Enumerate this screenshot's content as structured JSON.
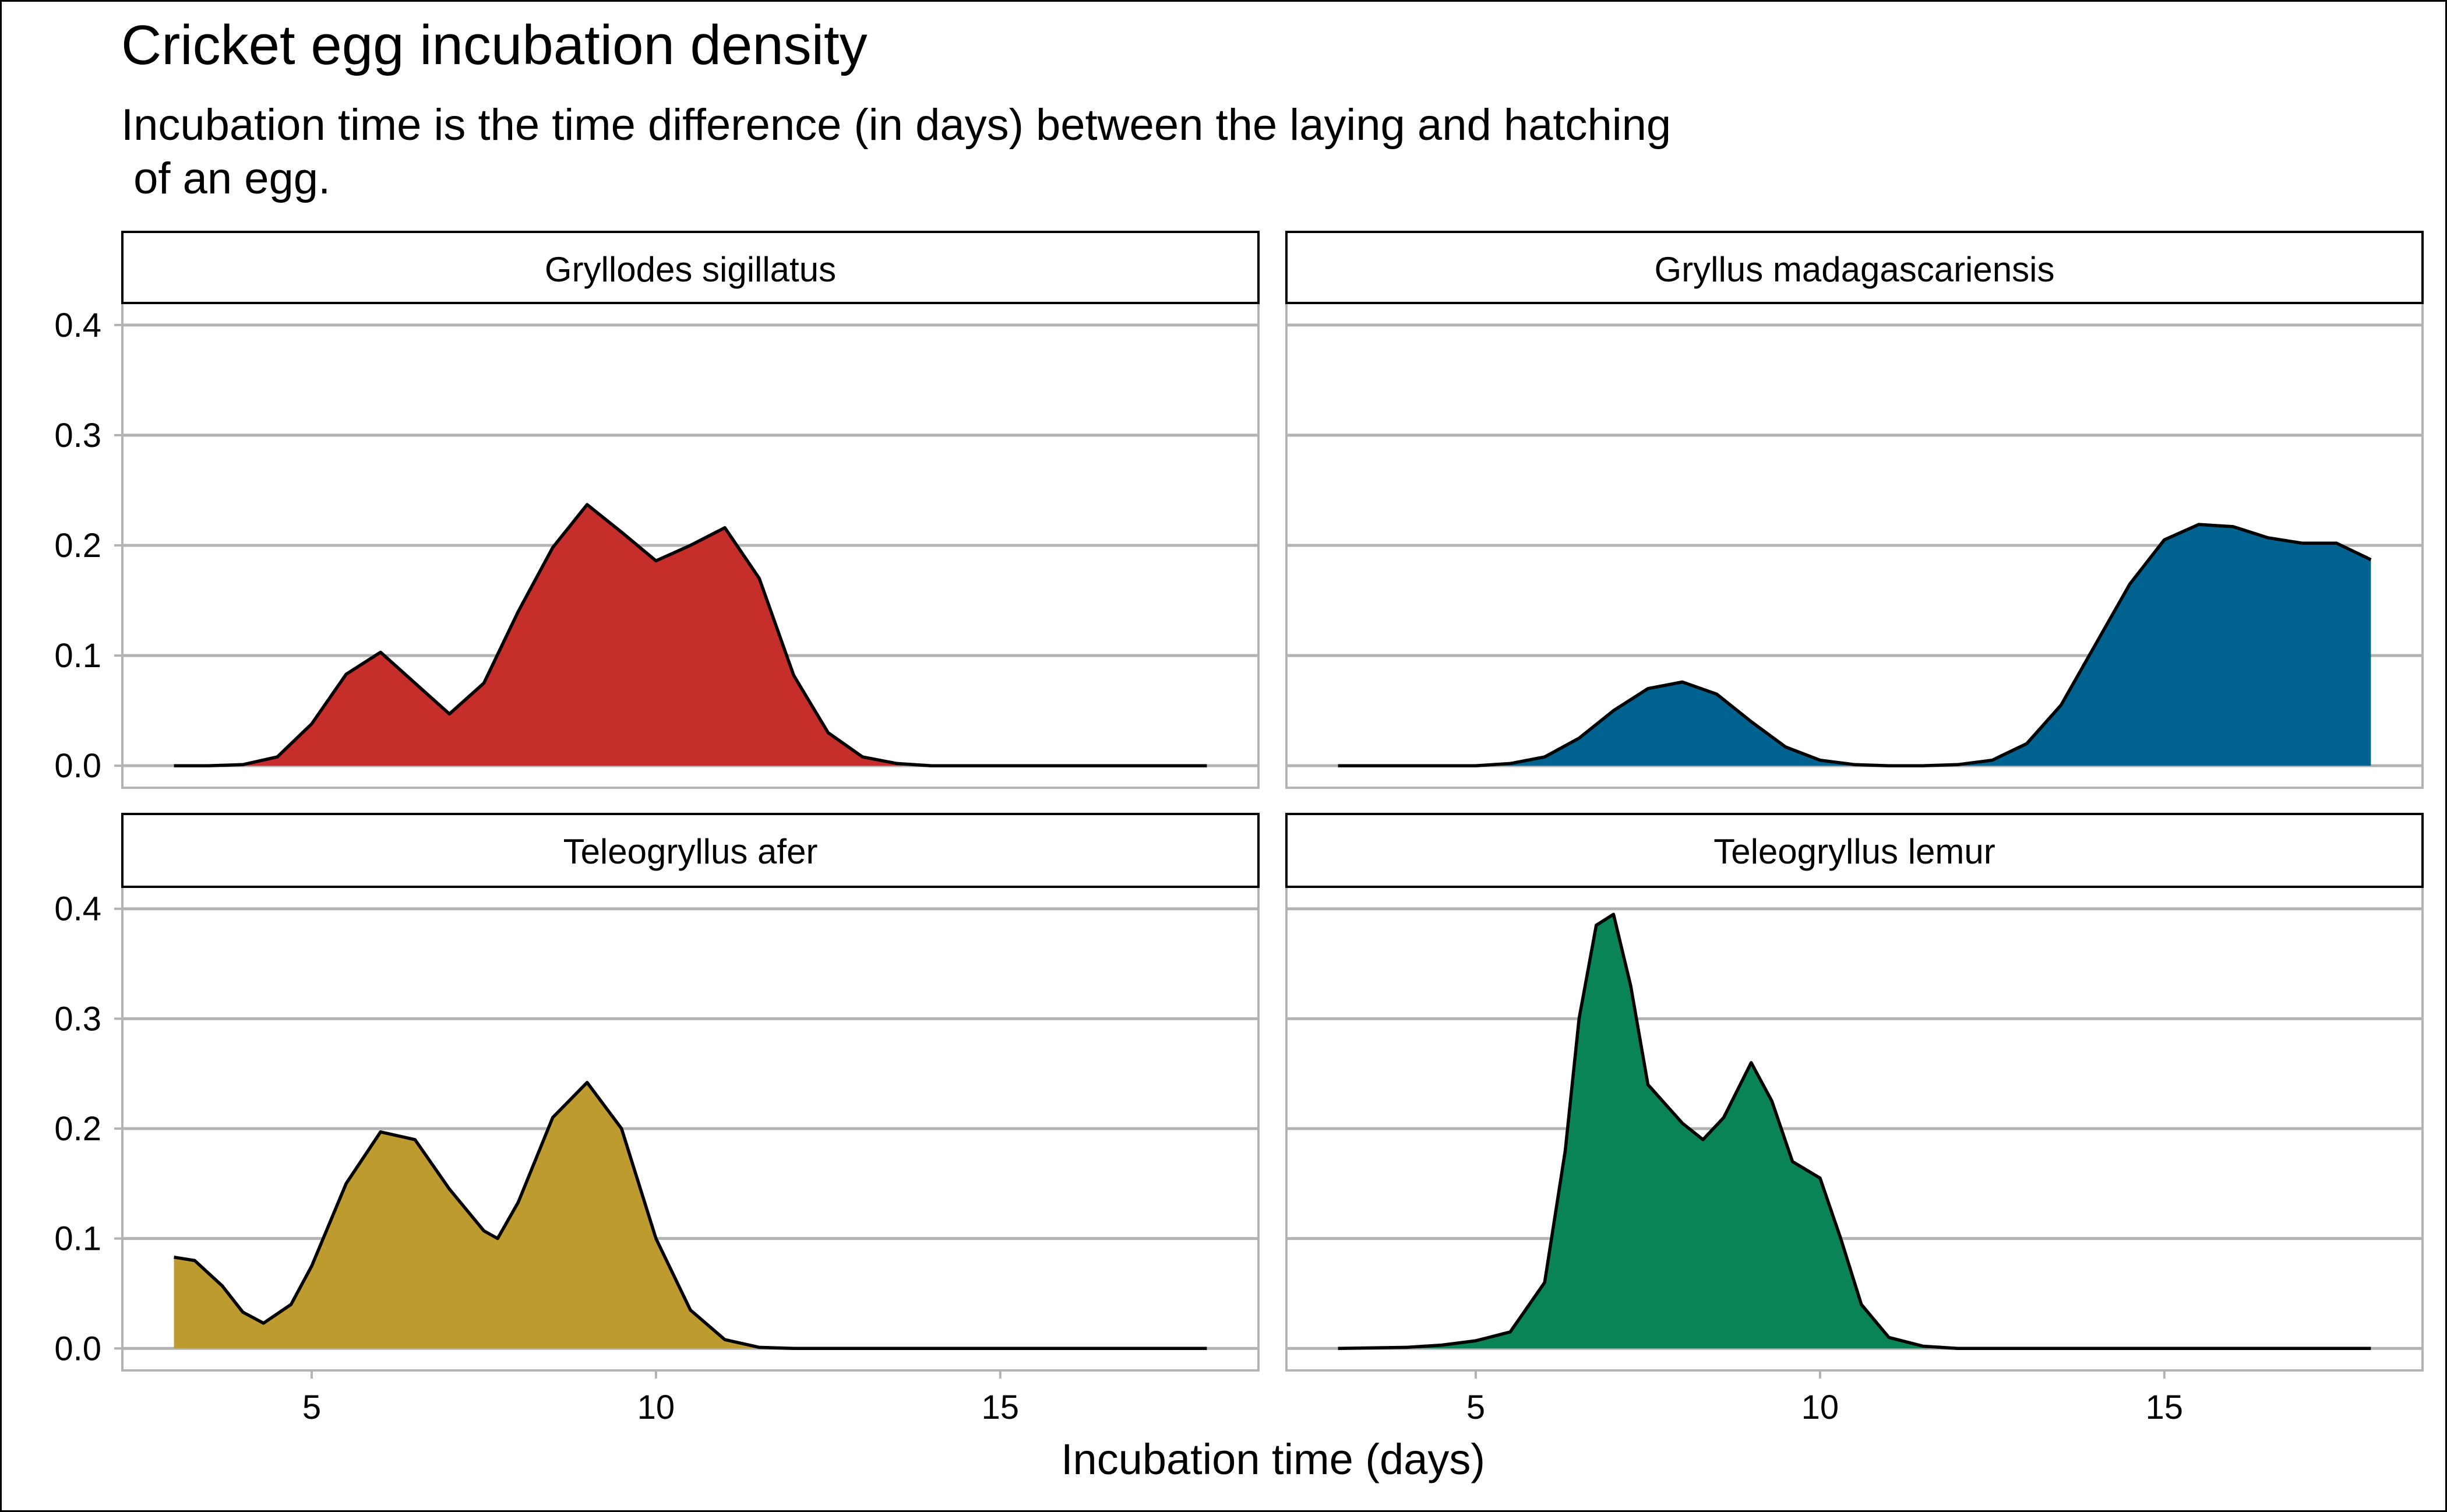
{
  "chart_data": {
    "type": "area",
    "title": "Cricket egg incubation density",
    "subtitle_lines": [
      "Incubation time is the time difference (in days) between the laying and hatching",
      " of an egg."
    ],
    "xlabel": "Incubation time (days)",
    "ylabel": "",
    "xlim": [
      2.25,
      18.75
    ],
    "ylim": [
      -0.02,
      0.42
    ],
    "x_ticks": [
      5,
      10,
      15
    ],
    "y_ticks": [
      0.0,
      0.1,
      0.2,
      0.3,
      0.4
    ],
    "x_tick_labels": [
      "5",
      "10",
      "15"
    ],
    "y_tick_labels": [
      "0.0",
      "0.1",
      "0.2",
      "0.3",
      "0.4"
    ],
    "grid": "horizontal-major",
    "legend": "none",
    "facets": [
      {
        "name": "Gryllodes sigillatus",
        "color": "#C62E2C",
        "x": [
          3,
          3.5,
          4,
          4.5,
          5,
          5.5,
          6,
          6.5,
          7,
          7.5,
          8,
          8.5,
          9,
          9.5,
          10,
          10.5,
          11,
          11.5,
          12,
          12.5,
          13,
          13.5,
          14,
          15,
          16,
          17,
          18
        ],
        "y": [
          0,
          0.0,
          0.001,
          0.008,
          0.038,
          0.083,
          0.103,
          0.075,
          0.047,
          0.075,
          0.14,
          0.198,
          0.237,
          0.212,
          0.186,
          0.2,
          0.216,
          0.17,
          0.082,
          0.03,
          0.008,
          0.002,
          0.0,
          0,
          0,
          0,
          0
        ]
      },
      {
        "name": "Gryllus madagascariensis",
        "color": "#00628E",
        "x": [
          3,
          4,
          5,
          5.5,
          6,
          6.5,
          7,
          7.5,
          8,
          8.5,
          9,
          9.5,
          10,
          10.5,
          11,
          11.5,
          12,
          12.5,
          13,
          13.5,
          14,
          14.5,
          15,
          15.5,
          16,
          16.5,
          17,
          17.5,
          18
        ],
        "y": [
          0,
          0,
          0.0,
          0.002,
          0.008,
          0.025,
          0.05,
          0.07,
          0.076,
          0.065,
          0.04,
          0.017,
          0.005,
          0.001,
          0.0,
          0.0,
          0.001,
          0.005,
          0.02,
          0.055,
          0.11,
          0.165,
          0.205,
          0.219,
          0.217,
          0.207,
          0.202,
          0.202,
          0.187
        ]
      },
      {
        "name": "Teleogryllus afer",
        "color": "#BE9B2E",
        "x": [
          3,
          3.3,
          3.7,
          4,
          4.3,
          4.7,
          5,
          5.5,
          6,
          6.5,
          7,
          7.5,
          7.7,
          8,
          8.5,
          9,
          9.5,
          10,
          10.5,
          11,
          11.5,
          12,
          13,
          14,
          15,
          16,
          17,
          18
        ],
        "y": [
          0.083,
          0.08,
          0.057,
          0.033,
          0.023,
          0.04,
          0.075,
          0.15,
          0.197,
          0.19,
          0.145,
          0.107,
          0.1,
          0.133,
          0.21,
          0.242,
          0.2,
          0.1,
          0.035,
          0.008,
          0.001,
          0.0,
          0,
          0,
          0,
          0,
          0,
          0
        ]
      },
      {
        "name": "Teleogryllus lemur",
        "color": "#0A8457",
        "x": [
          3,
          4,
          4.5,
          5,
          5.5,
          6,
          6.3,
          6.5,
          6.75,
          7,
          7.25,
          7.5,
          8,
          8.3,
          8.6,
          9,
          9.3,
          9.6,
          10,
          10.3,
          10.6,
          11,
          11.5,
          12,
          13,
          14,
          15,
          16,
          17,
          18
        ],
        "y": [
          0,
          0.001,
          0.003,
          0.007,
          0.015,
          0.06,
          0.18,
          0.3,
          0.385,
          0.395,
          0.33,
          0.24,
          0.205,
          0.19,
          0.21,
          0.26,
          0.225,
          0.17,
          0.155,
          0.1,
          0.04,
          0.01,
          0.002,
          0.0,
          0,
          0,
          0,
          0,
          0,
          0
        ]
      }
    ]
  }
}
